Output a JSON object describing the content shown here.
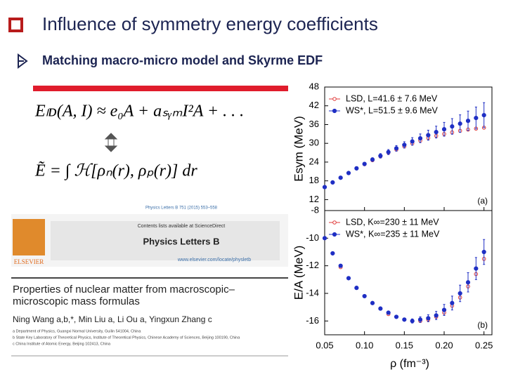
{
  "header": {
    "title": "Influence of symmetry energy coefficients",
    "subtitle": "Matching macro-micro model and Skyrme EDF"
  },
  "equations": [
    "Eₗᴅ(A, I) ≈ e₀A + aₛᵧₘI²A + . . .",
    "Ẽ = ∫ ℋ[ρₙ(r), ρₚ(r)] dr"
  ],
  "paper": {
    "citation": "Physics Letters B 751 (2015) 553–558",
    "contents": "Contents lists available at ScienceDirect",
    "journal": "Physics Letters B",
    "publisher": "ELSEVIER",
    "url": "www.elsevier.com/locate/physletb",
    "title": "Properties of nuclear matter from macroscopic–microscopic mass formulas",
    "authors": "Ning Wang a,b,*, Min Liu a, Li Ou a, Yingxun Zhang c",
    "affiliations": [
      "a Department of Physics, Guangxi Normal University, Guilin 541004, China",
      "b State Key Laboratory of Theoretical Physics, Institute of Theoretical Physics, Chinese Academy of Sciences, Beijing 100190, China",
      "c China Institute of Atomic Energy, Beijing 102413, China"
    ]
  },
  "chart_data": [
    {
      "type": "scatter",
      "ylabel": "Esym (MeV)",
      "panel_label": "(a)",
      "legend": "upper left",
      "x": [
        0.05,
        0.06,
        0.07,
        0.08,
        0.09,
        0.1,
        0.11,
        0.12,
        0.13,
        0.14,
        0.15,
        0.16,
        0.17,
        0.18,
        0.19,
        0.2,
        0.21,
        0.22,
        0.23,
        0.24,
        0.25
      ],
      "xlim": [
        0.05,
        0.26
      ],
      "ylim": [
        8.5,
        48
      ],
      "yticks": [
        12,
        18,
        24,
        30,
        36,
        42,
        48
      ],
      "series": [
        {
          "name": "LSD, L=41.6 ± 7.6 MeV",
          "color": "#e03a3a",
          "marker": "open",
          "values": [
            16,
            17.5,
            19,
            20.5,
            22,
            23.3,
            24.6,
            25.8,
            27,
            28,
            29,
            30,
            30.9,
            31.7,
            32.4,
            33,
            33.5,
            34,
            34.4,
            34.7,
            35
          ]
        },
        {
          "name": "WS*, L=51.5 ± 9.6 MeV",
          "color": "#1f2fc4",
          "marker": "filled",
          "values": [
            16,
            17.5,
            19,
            20.5,
            22,
            23.4,
            24.8,
            26,
            27.2,
            28.4,
            29.5,
            30.6,
            31.6,
            32.6,
            33.6,
            34.5,
            35.4,
            36.3,
            37.2,
            38.1,
            39
          ],
          "errors": [
            0.3,
            0.3,
            0.4,
            0.4,
            0.5,
            0.5,
            0.6,
            0.7,
            0.8,
            0.9,
            1,
            1.2,
            1.4,
            1.6,
            1.9,
            2.2,
            2.5,
            2.8,
            3.1,
            3.5,
            4
          ]
        }
      ]
    },
    {
      "type": "scatter",
      "ylabel": "E/A (MeV)",
      "xlabel": "ρ (fm⁻³)",
      "panel_label": "(b)",
      "legend": "upper left",
      "x": [
        0.05,
        0.06,
        0.07,
        0.08,
        0.09,
        0.1,
        0.11,
        0.12,
        0.13,
        0.14,
        0.15,
        0.16,
        0.17,
        0.18,
        0.19,
        0.2,
        0.21,
        0.22,
        0.23,
        0.24,
        0.25
      ],
      "xlim": [
        0.05,
        0.26
      ],
      "ylim": [
        -17,
        -8
      ],
      "yticks": [
        -16,
        -14,
        -12,
        -10,
        -8
      ],
      "xticks": [
        {
          "value": 0.05,
          "label": "0.05"
        },
        {
          "value": 0.1,
          "label": "0.10"
        },
        {
          "value": 0.15,
          "label": "0.15"
        },
        {
          "value": 0.2,
          "label": "0.20"
        },
        {
          "value": 0.25,
          "label": "0.25"
        }
      ],
      "series": [
        {
          "name": "LSD, K∞=230 ± 11 MeV",
          "color": "#e03a3a",
          "marker": "open",
          "values": [
            -10.0,
            -11.1,
            -12.1,
            -12.9,
            -13.6,
            -14.2,
            -14.7,
            -15.1,
            -15.5,
            -15.7,
            -15.9,
            -16.0,
            -16.0,
            -15.9,
            -15.7,
            -15.4,
            -14.9,
            -14.3,
            -13.5,
            -12.6,
            -11.5
          ]
        },
        {
          "name": "WS*, K∞=235 ± 11 MeV",
          "color": "#1f2fc4",
          "marker": "filled",
          "values": [
            -10.0,
            -11.1,
            -12.0,
            -12.9,
            -13.6,
            -14.2,
            -14.7,
            -15.1,
            -15.4,
            -15.7,
            -15.9,
            -16.0,
            -15.9,
            -15.8,
            -15.6,
            -15.2,
            -14.7,
            -14.0,
            -13.2,
            -12.2,
            -11.0
          ],
          "errors": [
            0.1,
            0.1,
            0.1,
            0.1,
            0.1,
            0.1,
            0.1,
            0.1,
            0.1,
            0.1,
            0.1,
            0.15,
            0.2,
            0.25,
            0.3,
            0.4,
            0.5,
            0.6,
            0.7,
            0.8,
            0.9
          ]
        }
      ]
    }
  ]
}
